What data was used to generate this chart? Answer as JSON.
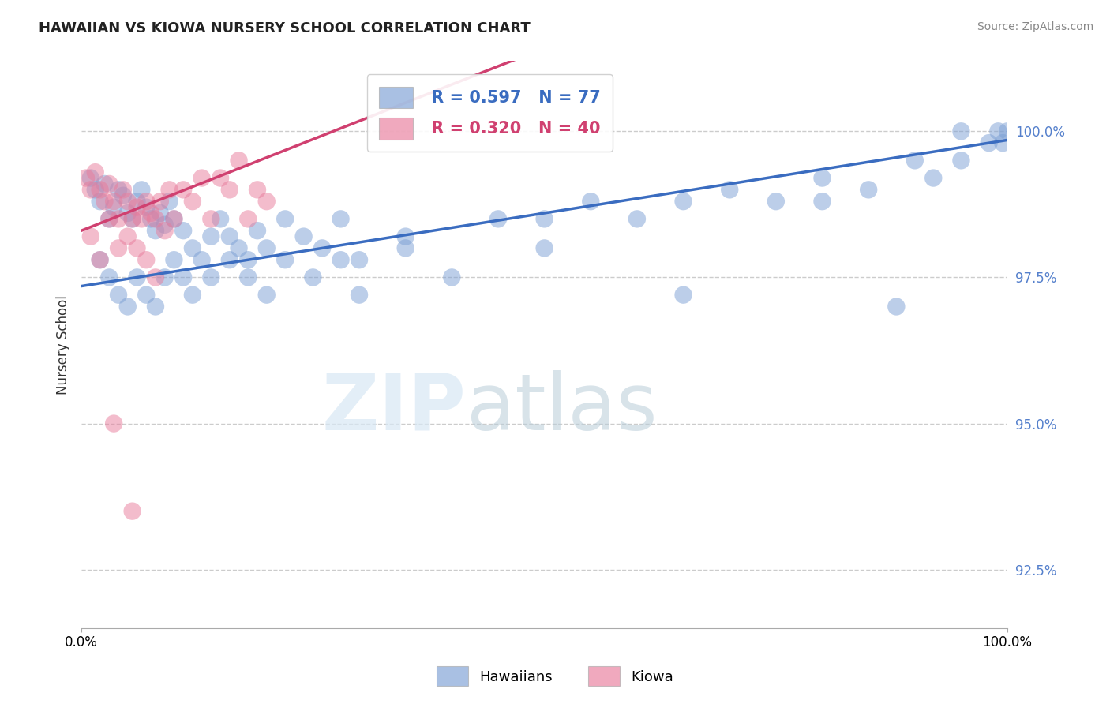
{
  "title": "HAWAIIAN VS KIOWA NURSERY SCHOOL CORRELATION CHART",
  "source_text": "Source: ZipAtlas.com",
  "ylabel": "Nursery School",
  "xlim": [
    0.0,
    100.0
  ],
  "ylim": [
    91.5,
    101.2
  ],
  "yticks": [
    92.5,
    95.0,
    97.5,
    100.0
  ],
  "ytick_labels": [
    "92.5%",
    "95.0%",
    "97.5%",
    "100.0%"
  ],
  "xtick_labels": [
    "0.0%",
    "100.0%"
  ],
  "legend_r_hawaiian": "R = 0.597",
  "legend_n_hawaiian": "N = 77",
  "legend_r_kiowa": "R = 0.320",
  "legend_n_kiowa": "N = 40",
  "legend_label_hawaiian": "Hawaiians",
  "legend_label_kiowa": "Kiowa",
  "color_hawaiian": "#7B9FD4",
  "color_kiowa": "#E87B9B",
  "color_hawaiian_line": "#3A6CC0",
  "color_kiowa_line": "#D04070",
  "background_color": "#ffffff",
  "hawaiian_line_x0": 0.0,
  "hawaiian_line_y0": 97.35,
  "hawaiian_line_x1": 100.0,
  "hawaiian_line_y1": 99.85,
  "kiowa_line_x0": 0.0,
  "kiowa_line_y0": 98.3,
  "kiowa_line_x1": 20.0,
  "kiowa_line_y1": 99.55,
  "hawaiian_x": [
    1.0,
    1.5,
    2.0,
    2.5,
    3.0,
    3.5,
    4.0,
    4.5,
    5.0,
    5.5,
    6.0,
    6.5,
    7.0,
    7.5,
    8.0,
    8.5,
    9.0,
    9.5,
    10.0,
    11.0,
    12.0,
    13.0,
    14.0,
    15.0,
    16.0,
    17.0,
    18.0,
    19.0,
    20.0,
    22.0,
    24.0,
    26.0,
    28.0,
    30.0,
    35.0,
    40.0,
    45.0,
    50.0,
    55.0,
    60.0,
    65.0,
    70.0,
    75.0,
    80.0,
    85.0,
    90.0,
    92.0,
    95.0,
    98.0,
    99.0,
    2.0,
    3.0,
    4.0,
    5.0,
    6.0,
    7.0,
    8.0,
    9.0,
    10.0,
    11.0,
    12.0,
    14.0,
    16.0,
    18.0,
    20.0,
    22.0,
    25.0,
    28.0,
    30.0,
    35.0,
    50.0,
    65.0,
    80.0,
    88.0,
    95.0,
    99.5,
    100.0
  ],
  "hawaiian_y": [
    99.2,
    99.0,
    98.8,
    99.1,
    98.5,
    98.7,
    99.0,
    98.9,
    98.6,
    98.5,
    98.8,
    99.0,
    98.7,
    98.5,
    98.3,
    98.6,
    98.4,
    98.8,
    98.5,
    98.3,
    98.0,
    97.8,
    98.2,
    98.5,
    98.2,
    98.0,
    97.8,
    98.3,
    98.0,
    98.5,
    98.2,
    98.0,
    98.5,
    97.8,
    98.2,
    97.5,
    98.5,
    98.0,
    98.8,
    98.5,
    98.8,
    99.0,
    98.8,
    99.2,
    99.0,
    99.5,
    99.2,
    100.0,
    99.8,
    100.0,
    97.8,
    97.5,
    97.2,
    97.0,
    97.5,
    97.2,
    97.0,
    97.5,
    97.8,
    97.5,
    97.2,
    97.5,
    97.8,
    97.5,
    97.2,
    97.8,
    97.5,
    97.8,
    97.2,
    98.0,
    98.5,
    97.2,
    98.8,
    97.0,
    99.5,
    99.8,
    100.0
  ],
  "kiowa_x": [
    0.5,
    1.0,
    1.5,
    2.0,
    2.5,
    3.0,
    3.5,
    4.0,
    4.5,
    5.0,
    5.5,
    6.0,
    6.5,
    7.0,
    7.5,
    8.0,
    8.5,
    9.0,
    9.5,
    10.0,
    11.0,
    12.0,
    13.0,
    14.0,
    15.0,
    16.0,
    17.0,
    18.0,
    19.0,
    20.0,
    1.0,
    2.0,
    3.0,
    4.0,
    5.0,
    6.0,
    7.0,
    8.0,
    3.5,
    5.5
  ],
  "kiowa_y": [
    99.2,
    99.0,
    99.3,
    99.0,
    98.8,
    99.1,
    98.8,
    98.5,
    99.0,
    98.8,
    98.5,
    98.7,
    98.5,
    98.8,
    98.6,
    98.5,
    98.8,
    98.3,
    99.0,
    98.5,
    99.0,
    98.8,
    99.2,
    98.5,
    99.2,
    99.0,
    99.5,
    98.5,
    99.0,
    98.8,
    98.2,
    97.8,
    98.5,
    98.0,
    98.2,
    98.0,
    97.8,
    97.5,
    95.0,
    93.5
  ]
}
